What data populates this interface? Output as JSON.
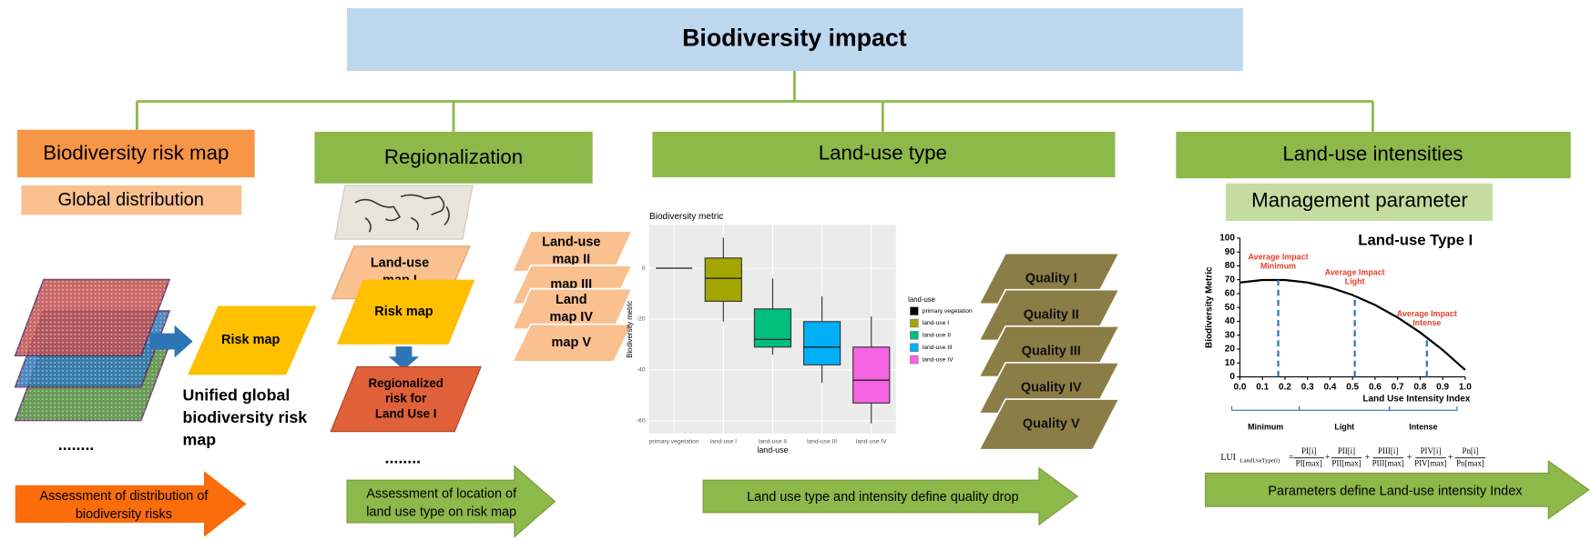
{
  "title": "Biodiversity impact",
  "columns": [
    {
      "header": "Biodiversity risk map",
      "subheader": "Global distribution",
      "risk_map": "Risk map",
      "caption": [
        "Unified global",
        "biodiversity risk",
        "map"
      ],
      "ellipsis": "........",
      "arrow": [
        "Assessment of distribution of",
        "biodiversity risks"
      ]
    },
    {
      "header": "Regionalization",
      "land_use_map": [
        "Land-use",
        "map I"
      ],
      "risk_map": "Risk map",
      "regionalized": [
        "Regionalized",
        "risk for",
        "Land  Use I"
      ],
      "ellipsis": "........",
      "arrow": [
        "Assessment of location of",
        "land use type on risk map"
      ],
      "map_stack": [
        [
          "Land-use",
          "map II"
        ],
        [
          "map III"
        ],
        [
          "Land",
          "map IV"
        ],
        [
          "map V"
        ]
      ]
    },
    {
      "header": "Land-use type",
      "qualities": [
        "Quality I",
        "Quality II",
        "Quality III",
        "Quality IV",
        "Quality V"
      ],
      "arrow": [
        "Land use type and intensity define quality drop"
      ]
    },
    {
      "header": "Land-use intensities",
      "subheader": "Management parameter",
      "arrow": [
        "Parameters define  Land-use intensity Index"
      ]
    }
  ],
  "boxplot": {
    "title": "Biodiversity metric",
    "ylabel": "Biodiversity metric",
    "xlabel": "land-use",
    "legend_title": "land-use",
    "categories": [
      "primary vegetation",
      "land-use I",
      "land-use II",
      "land-use III",
      "land-use IV"
    ],
    "colors": [
      "#000000",
      "#a3a500",
      "#00bf7d",
      "#00b0f6",
      "#f564e3"
    ],
    "ylim": [
      -65,
      17
    ],
    "yticks": [
      0,
      -20,
      -40,
      -60
    ],
    "whisker_low": [
      0,
      -21,
      -34,
      -45,
      -61
    ],
    "q1": [
      0,
      -13,
      -31,
      -38,
      -53
    ],
    "median": [
      0,
      -4,
      -28,
      -31,
      -44
    ],
    "q3": [
      0,
      4,
      -16,
      -21,
      -31
    ],
    "whisker_high": [
      0,
      12,
      -4,
      -11,
      -19
    ]
  },
  "intensity_chart": {
    "title": "Land-use  Type I",
    "ylabel": "Biodiversity Metric",
    "xlabel": "Land Use Intensity Index",
    "xlim": [
      0,
      1
    ],
    "ylim": [
      0,
      100
    ],
    "xticks": [
      {
        "value": 0,
        "label": "0.0"
      },
      0.1,
      0.2,
      0.3,
      0.4,
      0.5,
      0.6,
      0.7,
      0.8,
      0.9,
      {
        "value": 1,
        "label": "1.0"
      }
    ],
    "yticks": [
      0,
      10,
      20,
      30,
      40,
      50,
      60,
      70,
      80,
      90,
      100
    ],
    "curve": {
      "x": [
        0,
        0.1,
        0.2,
        0.3,
        0.4,
        0.5,
        0.6,
        0.7,
        0.8,
        0.9,
        1
      ],
      "y": [
        68,
        69.8,
        69.8,
        68,
        64.4,
        59,
        51.8,
        42.8,
        32,
        19.4,
        5
      ]
    },
    "markers": [
      {
        "x": 0.17,
        "y": 70,
        "label": [
          "Average Impact",
          "Minimum"
        ]
      },
      {
        "x": 0.51,
        "y": 59,
        "label": [
          "Average Impact",
          "Light"
        ]
      },
      {
        "x": 0.83,
        "y": 29,
        "label": [
          "Average Impact",
          "Intense"
        ]
      }
    ],
    "ranges": [
      {
        "label": "Minimum",
        "from": 0,
        "to": 0.3
      },
      {
        "label": "Light",
        "from": 0.3,
        "to": 0.7
      },
      {
        "label": "Intense",
        "from": 0.7,
        "to": 1
      }
    ],
    "formula": {
      "lhs": "LUI",
      "lhs_sub": "LandUseType(i)",
      "equals": "=",
      "plus": "+",
      "terms": [
        {
          "num": "PI[i]",
          "den": "PI[max]"
        },
        {
          "num": "PII[i]",
          "den": "PII[max]"
        },
        {
          "num": "PIII[i]",
          "den": "PIII[max]"
        },
        {
          "num": "PIV[i]",
          "den": "PIV[max]"
        },
        {
          "num": "Pn[i]",
          "den": "Pn[max]"
        }
      ]
    }
  }
}
